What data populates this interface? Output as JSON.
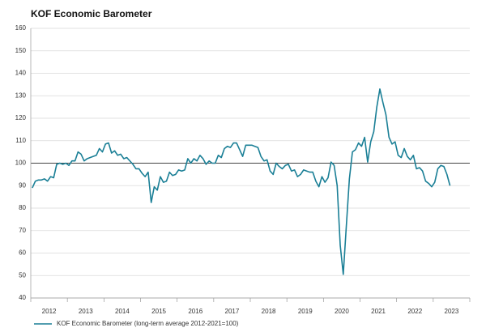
{
  "chart_data": {
    "type": "line",
    "title": "KOF Economic Barometer",
    "categories": [
      null,
      null,
      null,
      null,
      null,
      "2012",
      null,
      null,
      null,
      null,
      null,
      null,
      null,
      null,
      null,
      null,
      null,
      "2013",
      null,
      null,
      null,
      null,
      null,
      null,
      null,
      null,
      null,
      null,
      null,
      "2014",
      null,
      null,
      null,
      null,
      null,
      null,
      null,
      null,
      null,
      null,
      null,
      "2015",
      null,
      null,
      null,
      null,
      null,
      null,
      null,
      null,
      null,
      null,
      null,
      "2016",
      null,
      null,
      null,
      null,
      null,
      null,
      null,
      null,
      null,
      null,
      null,
      "2017",
      null,
      null,
      null,
      null,
      null,
      null,
      null,
      null,
      null,
      null,
      null,
      "2018",
      null,
      null,
      null,
      null,
      null,
      null,
      null,
      null,
      null,
      null,
      null,
      "2019",
      null,
      null,
      null,
      null,
      null,
      null,
      null,
      null,
      null,
      null,
      null,
      "2020",
      null,
      null,
      null,
      null,
      null,
      null,
      null,
      null,
      null,
      null,
      null,
      "2021",
      null,
      null,
      null,
      null,
      null,
      null,
      null,
      null,
      null,
      null,
      null,
      "2022",
      null,
      null,
      null,
      null,
      null,
      null,
      null,
      null,
      null,
      null,
      null,
      "2023",
      null,
      null,
      null,
      null,
      null,
      null
    ],
    "series": [
      {
        "name": "KOF Economic Barometer (long-term average 2012-2021=100)",
        "color": "#1a7f96",
        "values": [
          89,
          92,
          92.5,
          92.5,
          93,
          92,
          94,
          93.5,
          99.5,
          100,
          99.5,
          100,
          99,
          101,
          101,
          105,
          104,
          101,
          102,
          102.5,
          103,
          103.5,
          106.5,
          105,
          108.5,
          109,
          104.5,
          105.5,
          103.5,
          104,
          102,
          102.5,
          101,
          99.5,
          97.5,
          97.5,
          95.5,
          94,
          96,
          82.5,
          89.5,
          88,
          94,
          91.5,
          92,
          96,
          94.5,
          95,
          97,
          96.5,
          97,
          102,
          100,
          102,
          101,
          103.5,
          102,
          99.5,
          101,
          100,
          100,
          103.5,
          102.5,
          106.5,
          107.5,
          107,
          109,
          109,
          106,
          103,
          108,
          108,
          108,
          107.5,
          107,
          103,
          101,
          101.5,
          96.5,
          95,
          100,
          98.5,
          97.5,
          99,
          99.5,
          96.5,
          97,
          94,
          95,
          97,
          96.5,
          96,
          96,
          92,
          89.5,
          94,
          91.5,
          93.5,
          100.5,
          99,
          90,
          63.5,
          50.5,
          72,
          93,
          105,
          106,
          109,
          107.5,
          111.5,
          100.5,
          109.5,
          114,
          125,
          133,
          127,
          121.5,
          111.5,
          108.5,
          109.5,
          103.5,
          102.5,
          106.5,
          103,
          101.5,
          103.5,
          97.5,
          98,
          96.5,
          92,
          91,
          89.5,
          91.5,
          97.5,
          99,
          98.5,
          95,
          90,
          null,
          null,
          null,
          null,
          null,
          null
        ]
      }
    ],
    "ylim": [
      40,
      160
    ],
    "yticks": [
      40,
      50,
      60,
      70,
      80,
      90,
      100,
      110,
      120,
      130,
      140,
      150,
      160
    ],
    "reference_line": 100,
    "grid": true,
    "legend": "bottom"
  }
}
